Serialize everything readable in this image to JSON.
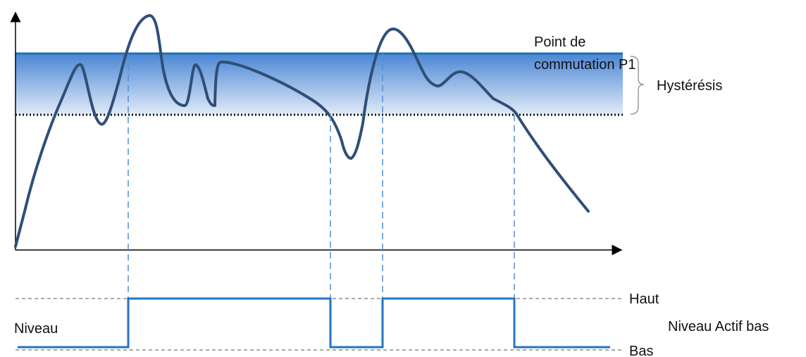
{
  "labels": {
    "switch_point_line1": "Point de",
    "switch_point_line2": "commutation P1",
    "hysteresis": "Hystérésis",
    "high": "Haut",
    "low": "Bas",
    "level": "Niveau",
    "mode": "Niveau Actif bas"
  },
  "colors": {
    "curve": "#2f4f78",
    "switch_line": "#1f6fb5",
    "band_top": "#4a86d4",
    "band_bottom": "#e2ebf8",
    "dashed_guide": "#4f8fd6",
    "output_signal": "#2374c6",
    "axis": "#000000",
    "reference_dashes": "#555555"
  }
}
